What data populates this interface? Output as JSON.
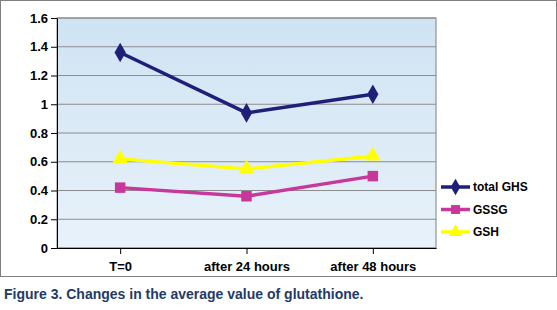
{
  "chart_data": {
    "type": "line",
    "title": "Figure 3. Changes in the average value of glutathione.",
    "categories": [
      "T=0",
      "after 24 hours",
      "after 48 hours"
    ],
    "series": [
      {
        "name": "total GHS",
        "color": "#1f1f7a",
        "marker": "diamond",
        "values": [
          1.36,
          0.94,
          1.07
        ]
      },
      {
        "name": "GSSG",
        "color": "#c8389a",
        "marker": "square",
        "values": [
          0.42,
          0.36,
          0.5
        ]
      },
      {
        "name": "GSH",
        "color": "#ffff00",
        "marker": "triangle",
        "values": [
          0.62,
          0.55,
          0.64
        ]
      }
    ],
    "ylim": [
      0,
      1.6
    ],
    "yticks": [
      0,
      0.2,
      0.4,
      0.6,
      0.8,
      1,
      1.2,
      1.4,
      1.6
    ],
    "grid": true,
    "legend": "right"
  }
}
